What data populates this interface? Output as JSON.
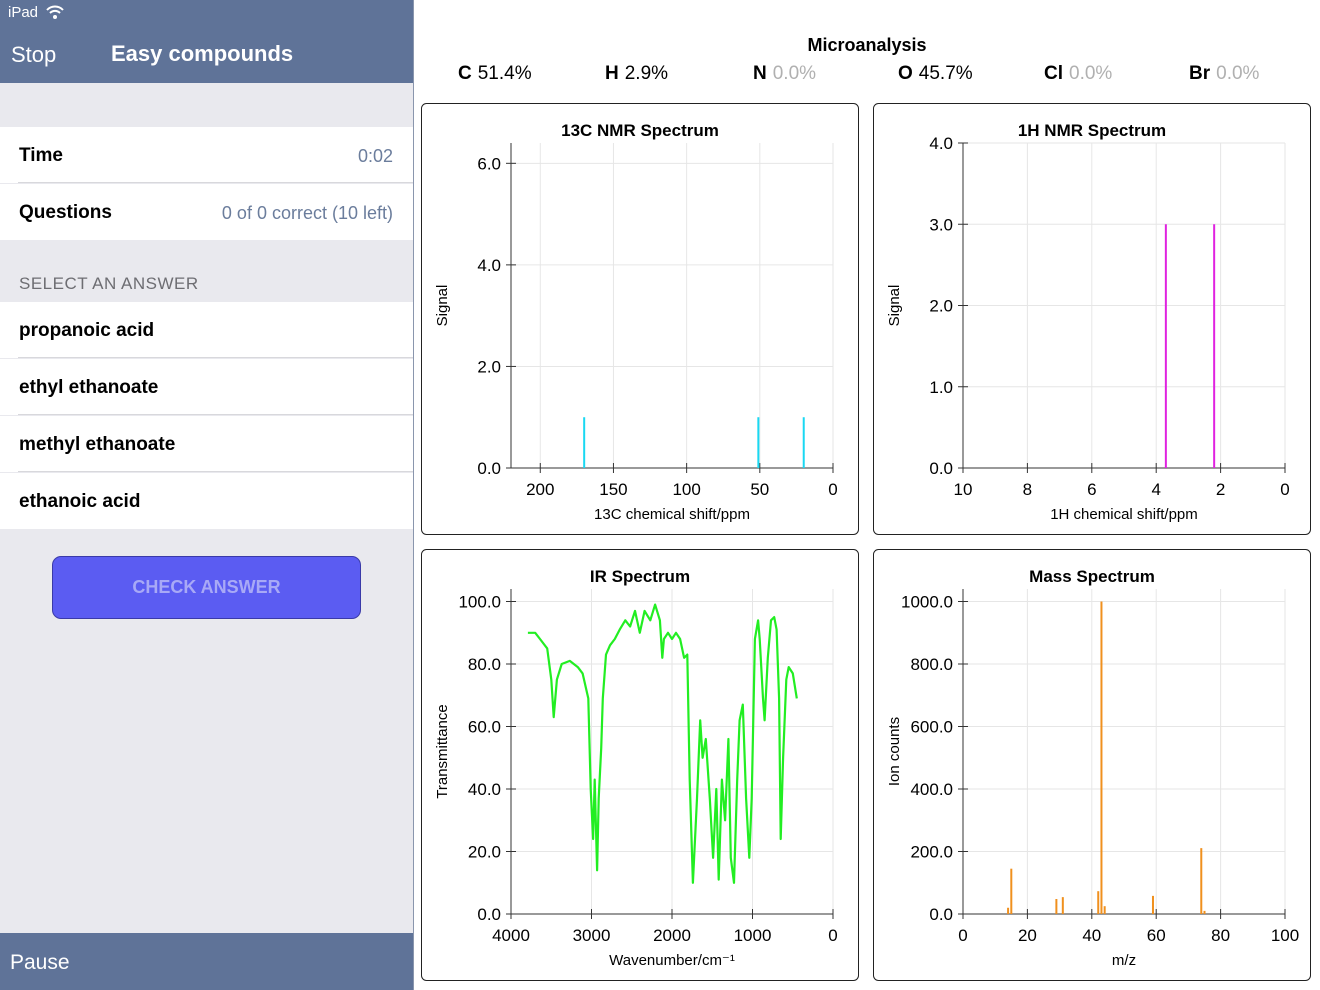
{
  "status": {
    "device": "iPad"
  },
  "nav": {
    "back": "Stop",
    "title": "Easy compounds"
  },
  "stats": [
    {
      "label": "Time",
      "value": "0:02"
    },
    {
      "label": "Questions",
      "value": "0 of 0 correct (10 left)"
    }
  ],
  "section": "SELECT AN ANSWER",
  "answers": [
    "propanoic acid",
    "ethyl ethanoate",
    "methyl ethanoate",
    "ethanoic acid"
  ],
  "button": "CHECK ANSWER",
  "footer": "Pause",
  "microanalysis": {
    "title": "Microanalysis",
    "elements": [
      {
        "symbol": "C",
        "value": "51.4%"
      },
      {
        "symbol": "H",
        "value": "2.9%"
      },
      {
        "symbol": "N",
        "value": "0.0%"
      },
      {
        "symbol": "O",
        "value": "45.7%"
      },
      {
        "symbol": "Cl",
        "value": "0.0%"
      },
      {
        "symbol": "Br",
        "value": "0.0%"
      }
    ]
  },
  "chart_data": [
    {
      "type": "stem",
      "title": "13C NMR Spectrum",
      "xlabel": "13C chemical shift/ppm",
      "ylabel": "Signal",
      "xlim": [
        220,
        0
      ],
      "xticks": [
        200,
        150,
        100,
        50,
        0
      ],
      "ylim": [
        0,
        6.4
      ],
      "yticks": [
        {
          "value": 0,
          "label": "0.0"
        },
        {
          "value": 2,
          "label": "2.0"
        },
        {
          "value": 4,
          "label": "4.0"
        },
        {
          "value": 6,
          "label": "6.0"
        }
      ],
      "grid": true,
      "color": "#19d8f2",
      "x": [
        170,
        51,
        20
      ],
      "values": [
        1,
        1,
        1
      ]
    },
    {
      "type": "stem",
      "title": "1H NMR Spectrum",
      "xlabel": "1H chemical shift/ppm",
      "ylabel": "Signal",
      "xlim": [
        10,
        0
      ],
      "xticks": [
        10,
        8,
        6,
        4,
        2,
        0
      ],
      "ylim": [
        0,
        4
      ],
      "yticks": [
        {
          "value": 0,
          "label": "0.0"
        },
        {
          "value": 1,
          "label": "1.0"
        },
        {
          "value": 2,
          "label": "2.0"
        },
        {
          "value": 3,
          "label": "3.0"
        },
        {
          "value": 4,
          "label": "4.0"
        }
      ],
      "grid": true,
      "color": "#e022e0",
      "x": [
        3.7,
        2.2
      ],
      "values": [
        3,
        3
      ]
    },
    {
      "type": "line",
      "title": "IR Spectrum",
      "xlabel": "Wavenumber/cm⁻¹",
      "ylabel": "Transmittance",
      "xlim": [
        4000,
        0
      ],
      "xticks": [
        4000,
        3000,
        2000,
        1000,
        0
      ],
      "ylim": [
        0,
        104
      ],
      "yticks": [
        {
          "value": 0,
          "label": "0.0"
        },
        {
          "value": 20,
          "label": "20.0"
        },
        {
          "value": 40,
          "label": "40.0"
        },
        {
          "value": 60,
          "label": "60.0"
        },
        {
          "value": 80,
          "label": "80.0"
        },
        {
          "value": 100,
          "label": "100.0"
        }
      ],
      "grid": true,
      "color": "#22ee22",
      "x": [
        3790,
        3700,
        3640,
        3550,
        3500,
        3470,
        3430,
        3370,
        3270,
        3170,
        3110,
        3040,
        3010,
        2980,
        2960,
        2930,
        2910,
        2880,
        2860,
        2820,
        2770,
        2710,
        2650,
        2580,
        2520,
        2460,
        2400,
        2340,
        2270,
        2210,
        2150,
        2120,
        2100,
        2050,
        2000,
        1950,
        1900,
        1850,
        1810,
        1780,
        1740,
        1690,
        1650,
        1620,
        1580,
        1530,
        1490,
        1450,
        1420,
        1380,
        1340,
        1300,
        1270,
        1230,
        1190,
        1160,
        1120,
        1080,
        1040,
        1010,
        970,
        930,
        910,
        870,
        850,
        810,
        770,
        730,
        700,
        670,
        650,
        620,
        580,
        550,
        500,
        450
      ],
      "values": [
        90,
        90,
        88,
        85,
        75,
        63,
        75,
        80,
        81,
        79,
        77,
        69,
        40,
        24,
        43,
        14,
        37,
        53,
        69,
        83,
        86,
        88,
        91,
        94,
        92,
        97,
        90,
        97,
        94,
        99,
        94,
        82,
        88,
        90,
        88,
        90,
        88,
        82,
        83,
        43,
        10,
        37,
        62,
        50,
        56,
        37,
        18,
        40,
        11,
        43,
        30,
        56,
        18,
        10,
        43,
        62,
        67,
        37,
        18,
        37,
        88,
        94,
        88,
        69,
        62,
        82,
        94,
        95,
        91,
        69,
        24,
        50,
        75,
        79,
        77,
        69
      ]
    },
    {
      "type": "stem",
      "title": "Mass Spectrum",
      "xlabel": "m/z",
      "ylabel": "Ion counts",
      "xlim": [
        0,
        100
      ],
      "xticks": [
        0,
        20,
        40,
        60,
        80,
        100
      ],
      "ylim": [
        0,
        1040
      ],
      "yticks": [
        {
          "value": 0,
          "label": "0.0"
        },
        {
          "value": 200,
          "label": "200.0"
        },
        {
          "value": 400,
          "label": "400.0"
        },
        {
          "value": 600,
          "label": "600.0"
        },
        {
          "value": 800,
          "label": "800.0"
        },
        {
          "value": 1000,
          "label": "1000.0"
        }
      ],
      "grid": true,
      "color": "#f0901e",
      "x": [
        14,
        15,
        29,
        31,
        42,
        43,
        44,
        59,
        74,
        75
      ],
      "values": [
        20,
        145,
        48,
        54,
        73,
        1000,
        25,
        58,
        211,
        10
      ]
    }
  ]
}
